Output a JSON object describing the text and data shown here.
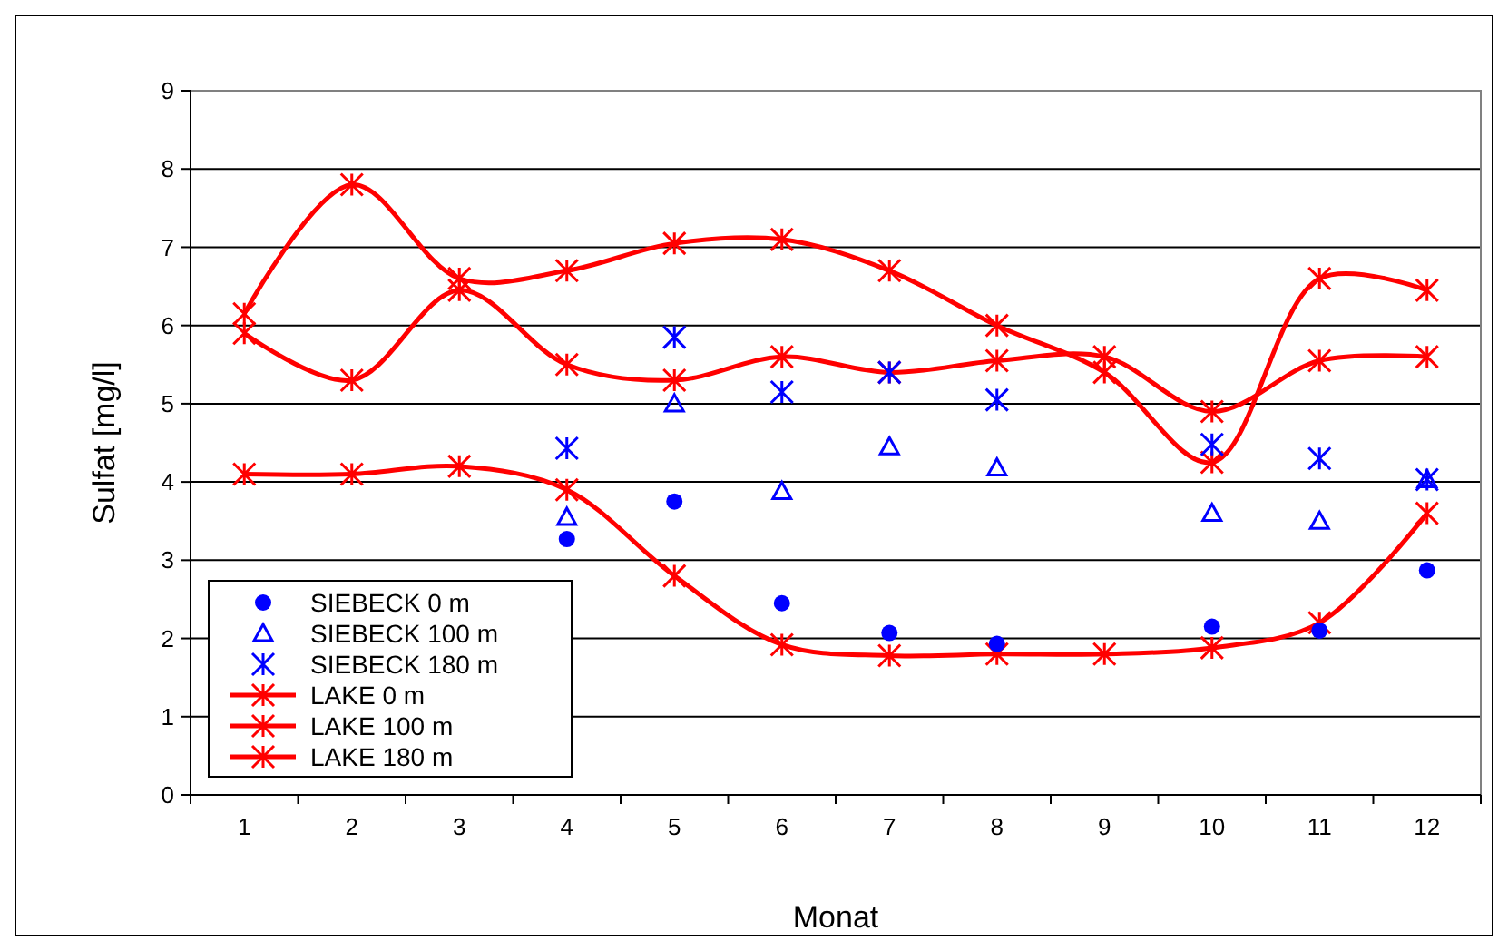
{
  "chart_data": {
    "type": "line",
    "xlabel": "Monat",
    "ylabel": "Sulfat [mg/l]",
    "categories": [
      "1",
      "2",
      "3",
      "4",
      "5",
      "6",
      "7",
      "8",
      "9",
      "10",
      "11",
      "12"
    ],
    "ylim": [
      0,
      9
    ],
    "yticks": [
      0,
      1,
      2,
      3,
      4,
      5,
      6,
      7,
      8,
      9
    ],
    "grid": "y",
    "legend": "bottom left",
    "series": [
      {
        "name": "SIEBECK 0 m",
        "type": "scatter",
        "marker": "circle",
        "color": "#0000ff",
        "values": [
          null,
          null,
          null,
          3.27,
          3.75,
          2.45,
          2.07,
          1.93,
          null,
          2.15,
          2.1,
          2.87
        ]
      },
      {
        "name": "SIEBECK 100 m",
        "type": "scatter",
        "marker": "triangle",
        "color": "#0000ff",
        "values": [
          null,
          null,
          null,
          3.55,
          5.0,
          3.88,
          4.45,
          4.18,
          null,
          3.6,
          3.5,
          4.03
        ]
      },
      {
        "name": "SIEBECK 180 m",
        "type": "scatter",
        "marker": "cross",
        "color": "#0000ff",
        "values": [
          null,
          null,
          null,
          4.43,
          5.85,
          5.15,
          5.4,
          5.05,
          null,
          4.48,
          4.3,
          4.03
        ]
      },
      {
        "name": "LAKE 0 m",
        "type": "line",
        "marker": "cross",
        "color": "#ff0000",
        "values": [
          4.1,
          4.1,
          4.2,
          3.9,
          2.8,
          1.92,
          1.78,
          1.8,
          1.8,
          1.88,
          2.2,
          3.6
        ]
      },
      {
        "name": "LAKE 100 m",
        "type": "line",
        "marker": "cross",
        "color": "#ff0000",
        "values": [
          5.9,
          5.3,
          6.45,
          5.5,
          5.3,
          5.6,
          5.4,
          5.55,
          5.6,
          4.9,
          5.55,
          5.6
        ]
      },
      {
        "name": "LAKE 180 m",
        "type": "line",
        "marker": "cross",
        "color": "#ff0000",
        "values": [
          6.15,
          7.8,
          6.6,
          6.7,
          7.05,
          7.1,
          6.7,
          6.0,
          5.4,
          4.25,
          6.6,
          6.45
        ]
      }
    ]
  }
}
